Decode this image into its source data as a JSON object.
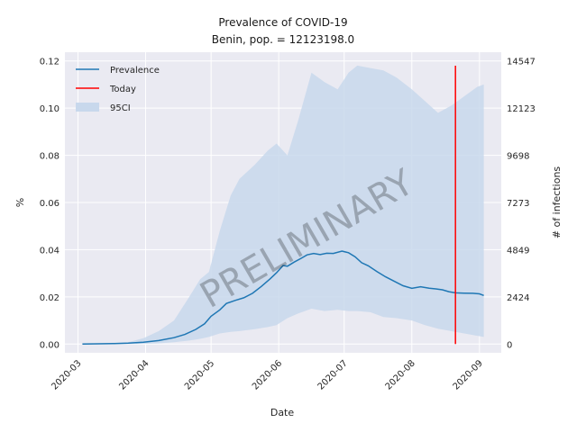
{
  "chart_data": {
    "type": "line",
    "title": "Prevalence of COVID-19",
    "subtitle": "Benin, pop. = 12123198.0",
    "xlabel": "Date",
    "ylabel": "%",
    "ylabel_right": "# of infections",
    "watermark": "PRELIMINARY",
    "x_ticks": [
      "2020-03",
      "2020-04",
      "2020-05",
      "2020-06",
      "2020-07",
      "2020-08",
      "2020-09"
    ],
    "y_ticks": [
      "0.00",
      "0.02",
      "0.04",
      "0.06",
      "0.08",
      "0.10",
      "0.12"
    ],
    "y_ticks_right": [
      "0",
      "2424",
      "4849",
      "7273",
      "9698",
      "12123",
      "14547"
    ],
    "ylim": [
      -0.0037,
      0.1237
    ],
    "xlim": [
      "2020-02-24",
      "2020-09-11"
    ],
    "grid": true,
    "legend_position": "top-left",
    "legend": [
      "Prevalence",
      "Today",
      "95CI"
    ],
    "colors": {
      "prevalence": "#1f77b4",
      "today": "#ff0000",
      "ci": "#c8d8ec",
      "background": "#eaeaf2"
    },
    "today": "2020-08-21",
    "series": [
      {
        "name": "Prevalence",
        "x": [
          "2020-03-03",
          "2020-03-10",
          "2020-03-17",
          "2020-03-24",
          "2020-03-31",
          "2020-04-07",
          "2020-04-14",
          "2020-04-19",
          "2020-04-24",
          "2020-04-28",
          "2020-05-01",
          "2020-05-05",
          "2020-05-08",
          "2020-05-12",
          "2020-05-16",
          "2020-05-20",
          "2020-05-24",
          "2020-05-28",
          "2020-05-31",
          "2020-06-03",
          "2020-06-05",
          "2020-06-08",
          "2020-06-11",
          "2020-06-14",
          "2020-06-17",
          "2020-06-20",
          "2020-06-23",
          "2020-06-26",
          "2020-06-30",
          "2020-07-03",
          "2020-07-06",
          "2020-07-09",
          "2020-07-12",
          "2020-07-16",
          "2020-07-20",
          "2020-07-24",
          "2020-07-28",
          "2020-08-01",
          "2020-08-05",
          "2020-08-09",
          "2020-08-12",
          "2020-08-15",
          "2020-08-18",
          "2020-08-21",
          "2020-08-25",
          "2020-08-29",
          "2020-09-01",
          "2020-09-03"
        ],
        "values": [
          0.0,
          0.0001,
          0.0002,
          0.0004,
          0.0008,
          0.0015,
          0.0027,
          0.0041,
          0.0062,
          0.0086,
          0.0118,
          0.0145,
          0.0172,
          0.0185,
          0.0196,
          0.0215,
          0.0244,
          0.0276,
          0.0302,
          0.0333,
          0.033,
          0.0347,
          0.0362,
          0.0378,
          0.0384,
          0.0379,
          0.0385,
          0.0384,
          0.0394,
          0.0387,
          0.037,
          0.0345,
          0.0332,
          0.0307,
          0.0285,
          0.0266,
          0.0247,
          0.0236,
          0.0243,
          0.0237,
          0.0234,
          0.023,
          0.0222,
          0.0217,
          0.0216,
          0.0215,
          0.0213,
          0.0206
        ]
      },
      {
        "name": "95CI",
        "x": [
          "2020-03-03",
          "2020-03-24",
          "2020-03-31",
          "2020-04-07",
          "2020-04-14",
          "2020-04-21",
          "2020-04-26",
          "2020-04-30",
          "2020-05-05",
          "2020-05-10",
          "2020-05-14",
          "2020-05-21",
          "2020-05-27",
          "2020-05-31",
          "2020-06-05",
          "2020-06-10",
          "2020-06-16",
          "2020-06-22",
          "2020-06-28",
          "2020-07-03",
          "2020-07-07",
          "2020-07-13",
          "2020-07-19",
          "2020-07-25",
          "2020-08-01",
          "2020-08-07",
          "2020-08-13",
          "2020-08-19",
          "2020-08-25",
          "2020-08-31",
          "2020-09-03"
        ],
        "upper": [
          0.0,
          0.0008,
          0.0025,
          0.0055,
          0.01,
          0.02,
          0.0275,
          0.0305,
          0.048,
          0.063,
          0.07,
          0.076,
          0.082,
          0.085,
          0.08,
          0.095,
          0.115,
          0.111,
          0.108,
          0.115,
          0.118,
          0.117,
          0.116,
          0.113,
          0.108,
          0.103,
          0.098,
          0.101,
          0.105,
          0.109,
          0.11
        ],
        "lower": [
          0.0,
          0.0,
          0.0001,
          0.0003,
          0.0008,
          0.0015,
          0.0022,
          0.003,
          0.0045,
          0.0052,
          0.0055,
          0.0063,
          0.0072,
          0.008,
          0.011,
          0.013,
          0.015,
          0.014,
          0.0145,
          0.014,
          0.014,
          0.0135,
          0.0115,
          0.011,
          0.01,
          0.008,
          0.0065,
          0.0055,
          0.0045,
          0.0035,
          0.003
        ]
      },
      {
        "name": "Today",
        "x": [
          "2020-08-21",
          "2020-08-21"
        ],
        "values": [
          0.0,
          0.118
        ]
      }
    ]
  }
}
